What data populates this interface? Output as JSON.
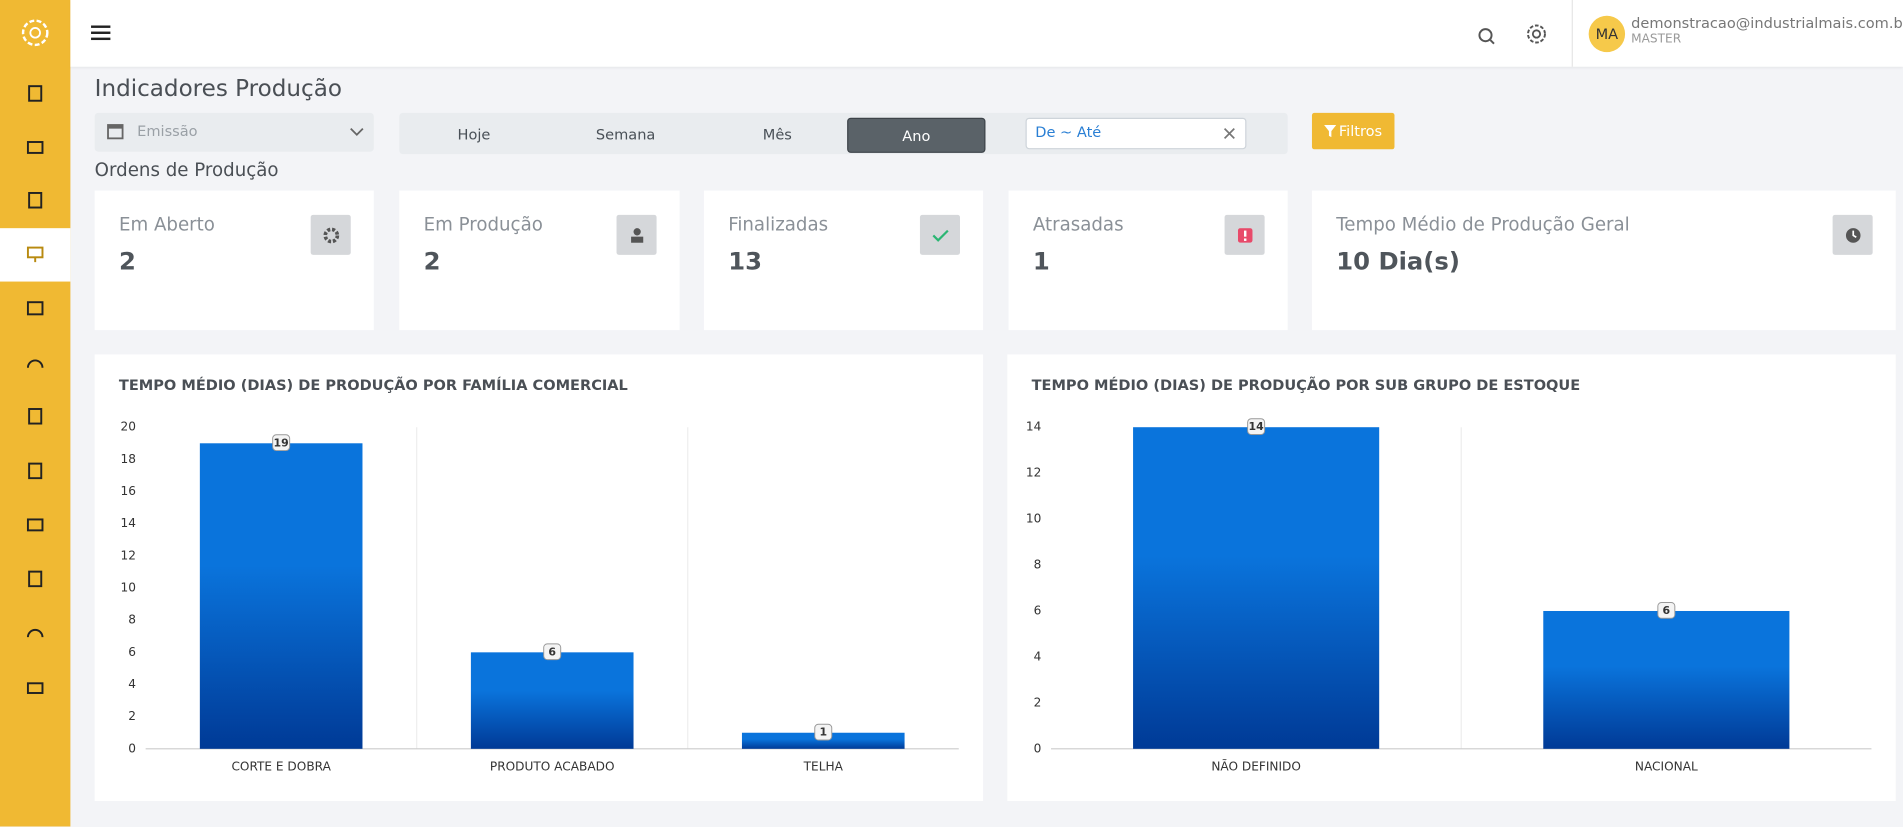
{
  "header": {
    "initials": "MA",
    "email": "demonstracao@industrialmais.com.br",
    "role": "MASTER"
  },
  "title": "Indicadores Produção",
  "filters": {
    "date_field": "Emissão",
    "periods": [
      "Hoje",
      "Semana",
      "Mês",
      "Ano"
    ],
    "range_placeholder": "De ~ Até",
    "button": "Filtros"
  },
  "section_title": "Ordens de Produção",
  "cards": [
    {
      "label": "Em Aberto",
      "value": 2
    },
    {
      "label": "Em Produção",
      "value": 2
    },
    {
      "label": "Finalizadas",
      "value": 13
    },
    {
      "label": "Atrasadas",
      "value": 1
    },
    {
      "label": "Tempo Médio de Produção Geral",
      "value": "10 Dia(s)"
    }
  ],
  "chart_data": [
    {
      "type": "bar",
      "title": "TEMPO MÉDIO (DIAS) DE PRODUÇÃO POR FAMÍLIA COMERCIAL",
      "categories": [
        "CORTE E DOBRA",
        "PRODUTO ACABADO",
        "TELHA"
      ],
      "values": [
        19,
        6,
        1
      ],
      "color": [
        "#0a74dc",
        "#003a96"
      ],
      "ylim": [
        0,
        20
      ],
      "yticks": [
        0,
        2,
        4,
        6,
        8,
        10,
        12,
        14,
        16,
        18,
        20
      ]
    },
    {
      "type": "bar",
      "title": "TEMPO MÉDIO (DIAS) DE PRODUÇÃO POR SUB GRUPO DE ESTOQUE",
      "categories": [
        "NÃO DEFINIDO",
        "NACIONAL"
      ],
      "values": [
        14,
        6
      ],
      "color": [
        "#0a74dc",
        "#003a96"
      ],
      "ylim": [
        0,
        14
      ],
      "yticks": [
        0,
        2,
        4,
        6,
        8,
        10,
        12,
        14
      ]
    }
  ]
}
